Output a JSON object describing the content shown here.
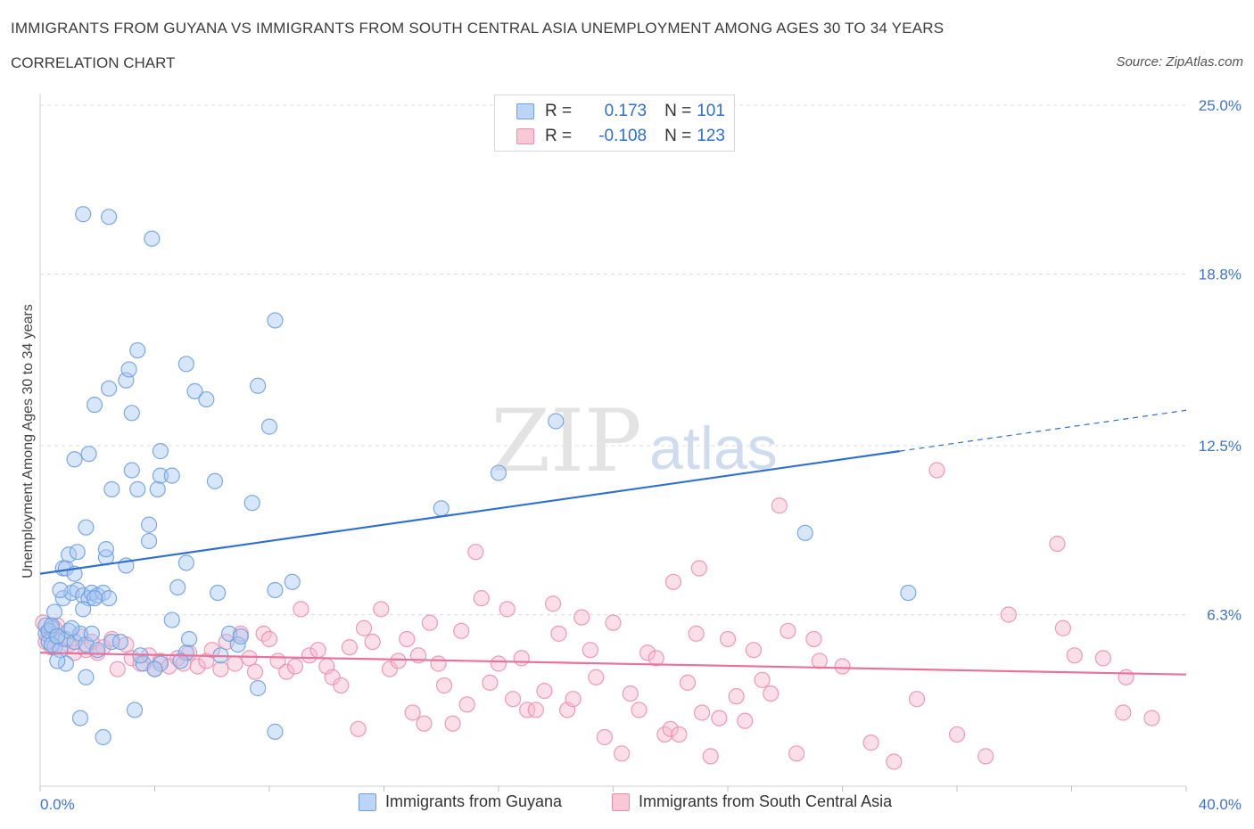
{
  "title": "IMMIGRANTS FROM GUYANA VS IMMIGRANTS FROM SOUTH CENTRAL ASIA UNEMPLOYMENT AMONG AGES 30 TO 34 YEARS",
  "subtitle": "CORRELATION CHART",
  "source": "Source: ZipAtlas.com",
  "watermark": {
    "zip": "ZIP",
    "atlas": "atlas"
  },
  "legend": {
    "r_label": "R =",
    "n_label": "N =",
    "rows": [
      {
        "r": "0.173",
        "n": "101"
      },
      {
        "r": "-0.108",
        "n": "123"
      }
    ]
  },
  "colors": {
    "blue_fill": "#a9c8f2",
    "blue_stroke": "#6fa0e0",
    "blue_line": "#2f6fd0",
    "pink_fill": "#f6b7cb",
    "pink_stroke": "#ec8fae",
    "pink_line": "#e8729a",
    "axis_text": "#3f74c9",
    "grid": "#dcdcdc"
  },
  "chart_data": {
    "type": "scatter",
    "title": "IMMIGRANTS FROM GUYANA VS IMMIGRANTS FROM SOUTH CENTRAL ASIA UNEMPLOYMENT AMONG AGES 30 TO 34 YEARS",
    "xlabel": "",
    "ylabel": "Unemployment Among Ages 30 to 34 years",
    "xlim": [
      0,
      40
    ],
    "ylim": [
      0,
      25
    ],
    "x_tick_labels": [
      "0.0%",
      "40.0%"
    ],
    "y_ticks": [
      6.3,
      12.5,
      18.8,
      25.0
    ],
    "y_tick_labels": [
      "6.3%",
      "12.5%",
      "18.8%",
      "25.0%"
    ],
    "grid": true,
    "legend_position": "bottom",
    "series": [
      {
        "name": "Immigrants from Guyana",
        "r": 0.173,
        "n": 101,
        "trend": {
          "x0": 0,
          "y0": 7.8,
          "x1": 30.0,
          "y1": 12.3,
          "dashed_to_x": 40,
          "dashed_to_y": 13.8
        },
        "points": [
          [
            0.2,
            5.6
          ],
          [
            0.3,
            5.3
          ],
          [
            0.4,
            5.8
          ],
          [
            0.5,
            5.1
          ],
          [
            0.2,
            5.9
          ],
          [
            0.6,
            5.5
          ],
          [
            0.3,
            5.7
          ],
          [
            0.4,
            5.2
          ],
          [
            0.5,
            6.4
          ],
          [
            0.7,
            5.0
          ],
          [
            0.9,
            5.4
          ],
          [
            1.0,
            5.7
          ],
          [
            1.2,
            5.3
          ],
          [
            1.4,
            5.6
          ],
          [
            1.6,
            5.2
          ],
          [
            0.8,
            6.9
          ],
          [
            1.1,
            7.1
          ],
          [
            1.3,
            7.2
          ],
          [
            1.5,
            7.0
          ],
          [
            1.7,
            6.9
          ],
          [
            1.8,
            7.1
          ],
          [
            2.0,
            7.0
          ],
          [
            2.2,
            7.1
          ],
          [
            2.4,
            6.9
          ],
          [
            0.7,
            7.2
          ],
          [
            0.8,
            8.0
          ],
          [
            0.9,
            8.0
          ],
          [
            1.2,
            7.8
          ],
          [
            1.0,
            8.5
          ],
          [
            1.3,
            8.6
          ],
          [
            1.6,
            9.5
          ],
          [
            1.5,
            6.5
          ],
          [
            1.8,
            5.6
          ],
          [
            2.5,
            5.3
          ],
          [
            2.3,
            8.4
          ],
          [
            2.3,
            8.7
          ],
          [
            3.0,
            8.1
          ],
          [
            3.8,
            9.0
          ],
          [
            3.8,
            9.6
          ],
          [
            5.1,
            8.2
          ],
          [
            4.8,
            7.3
          ],
          [
            6.2,
            7.1
          ],
          [
            4.6,
            6.1
          ],
          [
            5.1,
            4.9
          ],
          [
            4.9,
            4.6
          ],
          [
            4.2,
            4.5
          ],
          [
            3.6,
            4.5
          ],
          [
            3.5,
            4.8
          ],
          [
            4.0,
            4.3
          ],
          [
            5.2,
            5.4
          ],
          [
            6.6,
            5.6
          ],
          [
            6.9,
            5.2
          ],
          [
            8.8,
            7.5
          ],
          [
            8.2,
            7.2
          ],
          [
            1.7,
            12.2
          ],
          [
            1.2,
            12.0
          ],
          [
            1.9,
            14.0
          ],
          [
            2.4,
            14.6
          ],
          [
            3.0,
            14.9
          ],
          [
            3.1,
            15.3
          ],
          [
            3.2,
            13.7
          ],
          [
            3.4,
            16.0
          ],
          [
            5.1,
            15.5
          ],
          [
            5.4,
            14.5
          ],
          [
            5.8,
            14.2
          ],
          [
            3.2,
            11.6
          ],
          [
            3.4,
            10.9
          ],
          [
            4.1,
            10.9
          ],
          [
            4.2,
            11.4
          ],
          [
            4.6,
            11.4
          ],
          [
            4.2,
            12.3
          ],
          [
            6.1,
            11.2
          ],
          [
            7.4,
            10.4
          ],
          [
            7.6,
            14.7
          ],
          [
            8.0,
            13.2
          ],
          [
            8.2,
            17.1
          ],
          [
            1.5,
            21.0
          ],
          [
            2.4,
            20.9
          ],
          [
            3.9,
            20.1
          ],
          [
            2.5,
            10.9
          ],
          [
            1.1,
            5.8
          ],
          [
            0.9,
            4.5
          ],
          [
            0.6,
            4.6
          ],
          [
            1.6,
            4.0
          ],
          [
            1.4,
            2.5
          ],
          [
            2.2,
            1.8
          ],
          [
            3.3,
            2.8
          ],
          [
            7.6,
            3.6
          ],
          [
            8.2,
            2.0
          ],
          [
            14.0,
            10.2
          ],
          [
            16.0,
            11.5
          ],
          [
            18.0,
            13.4
          ],
          [
            26.7,
            9.3
          ],
          [
            30.3,
            7.1
          ],
          [
            6.3,
            4.8
          ],
          [
            7.0,
            5.5
          ],
          [
            2.0,
            5.0
          ],
          [
            2.8,
            5.3
          ],
          [
            0.4,
            5.9
          ],
          [
            0.6,
            5.5
          ],
          [
            1.9,
            6.9
          ]
        ]
      },
      {
        "name": "Immigrants from South Central Asia",
        "r": -0.108,
        "n": 123,
        "trend": {
          "x0": 0,
          "y0": 4.9,
          "x1": 40,
          "y1": 4.1
        },
        "points": [
          [
            0.1,
            6.0
          ],
          [
            0.3,
            5.6
          ],
          [
            0.5,
            5.8
          ],
          [
            0.2,
            5.3
          ],
          [
            0.4,
            5.1
          ],
          [
            0.6,
            5.9
          ],
          [
            0.8,
            5.4
          ],
          [
            1.0,
            5.2
          ],
          [
            1.2,
            4.9
          ],
          [
            1.4,
            5.5
          ],
          [
            1.6,
            5.0
          ],
          [
            1.8,
            5.3
          ],
          [
            2.0,
            4.9
          ],
          [
            2.2,
            5.1
          ],
          [
            2.5,
            5.4
          ],
          [
            2.7,
            4.3
          ],
          [
            3.0,
            5.2
          ],
          [
            3.2,
            4.7
          ],
          [
            3.5,
            4.5
          ],
          [
            3.8,
            4.8
          ],
          [
            4.0,
            4.3
          ],
          [
            4.2,
            4.6
          ],
          [
            4.5,
            4.4
          ],
          [
            4.8,
            4.7
          ],
          [
            5.0,
            4.5
          ],
          [
            5.2,
            4.9
          ],
          [
            5.5,
            4.4
          ],
          [
            5.8,
            4.6
          ],
          [
            6.0,
            5.0
          ],
          [
            6.3,
            4.3
          ],
          [
            6.5,
            5.3
          ],
          [
            6.8,
            4.5
          ],
          [
            7.0,
            5.6
          ],
          [
            7.3,
            4.7
          ],
          [
            7.5,
            4.2
          ],
          [
            7.8,
            5.6
          ],
          [
            8.0,
            5.4
          ],
          [
            8.3,
            4.6
          ],
          [
            8.6,
            4.2
          ],
          [
            8.9,
            4.4
          ],
          [
            9.1,
            6.5
          ],
          [
            9.4,
            4.8
          ],
          [
            9.7,
            5.0
          ],
          [
            10.0,
            4.4
          ],
          [
            10.2,
            4.0
          ],
          [
            10.5,
            3.7
          ],
          [
            10.8,
            5.1
          ],
          [
            11.1,
            2.1
          ],
          [
            11.3,
            5.8
          ],
          [
            11.6,
            5.3
          ],
          [
            11.9,
            6.5
          ],
          [
            12.2,
            4.3
          ],
          [
            12.5,
            4.6
          ],
          [
            12.8,
            5.4
          ],
          [
            13.0,
            2.7
          ],
          [
            13.2,
            4.8
          ],
          [
            13.4,
            2.3
          ],
          [
            13.6,
            6.0
          ],
          [
            13.9,
            4.5
          ],
          [
            14.1,
            3.7
          ],
          [
            14.4,
            2.3
          ],
          [
            14.7,
            5.7
          ],
          [
            14.9,
            3.0
          ],
          [
            15.2,
            8.6
          ],
          [
            15.4,
            6.9
          ],
          [
            15.7,
            3.8
          ],
          [
            16.0,
            4.5
          ],
          [
            16.3,
            6.5
          ],
          [
            16.5,
            3.2
          ],
          [
            16.8,
            4.7
          ],
          [
            17.0,
            2.8
          ],
          [
            17.3,
            2.8
          ],
          [
            17.6,
            3.5
          ],
          [
            17.9,
            6.7
          ],
          [
            18.1,
            5.6
          ],
          [
            18.4,
            2.8
          ],
          [
            18.6,
            3.2
          ],
          [
            18.9,
            6.2
          ],
          [
            19.2,
            5.0
          ],
          [
            19.4,
            4.0
          ],
          [
            19.7,
            1.8
          ],
          [
            20.0,
            6.0
          ],
          [
            20.3,
            1.2
          ],
          [
            20.6,
            3.4
          ],
          [
            20.9,
            2.8
          ],
          [
            21.2,
            4.9
          ],
          [
            21.5,
            4.7
          ],
          [
            21.8,
            1.9
          ],
          [
            22.0,
            2.1
          ],
          [
            22.3,
            1.9
          ],
          [
            22.6,
            3.8
          ],
          [
            22.9,
            5.6
          ],
          [
            23.1,
            2.7
          ],
          [
            23.4,
            1.1
          ],
          [
            23.7,
            2.5
          ],
          [
            24.0,
            5.4
          ],
          [
            24.3,
            3.3
          ],
          [
            24.6,
            2.4
          ],
          [
            24.9,
            5.0
          ],
          [
            25.2,
            3.9
          ],
          [
            25.5,
            3.4
          ],
          [
            25.8,
            10.3
          ],
          [
            26.1,
            5.7
          ],
          [
            26.4,
            1.2
          ],
          [
            27.0,
            5.4
          ],
          [
            27.2,
            4.6
          ],
          [
            28.0,
            4.4
          ],
          [
            29.0,
            1.6
          ],
          [
            29.8,
            0.9
          ],
          [
            30.6,
            3.2
          ],
          [
            31.3,
            11.6
          ],
          [
            32.0,
            1.9
          ],
          [
            33.0,
            1.1
          ],
          [
            33.8,
            6.3
          ],
          [
            35.5,
            8.9
          ],
          [
            35.7,
            5.8
          ],
          [
            36.1,
            4.8
          ],
          [
            37.1,
            4.7
          ],
          [
            37.8,
            2.7
          ],
          [
            37.9,
            4.0
          ],
          [
            38.8,
            2.5
          ],
          [
            22.1,
            7.5
          ],
          [
            23.0,
            8.0
          ]
        ]
      }
    ]
  },
  "bottom_legend": {
    "items": [
      {
        "label": "Immigrants from Guyana"
      },
      {
        "label": "Immigrants from South Central Asia"
      }
    ]
  }
}
